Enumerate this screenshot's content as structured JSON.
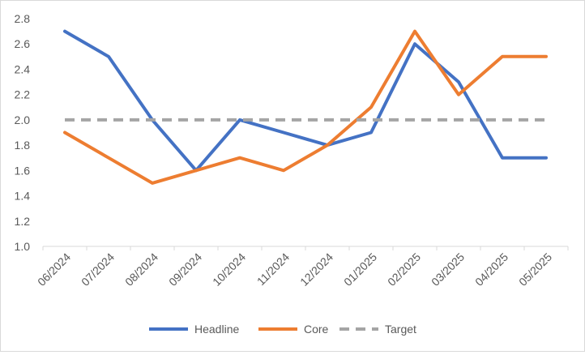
{
  "chart_data": {
    "type": "line",
    "title": "",
    "xlabel": "",
    "ylabel": "",
    "categories": [
      "06/2024",
      "07/2024",
      "08/2024",
      "09/2024",
      "10/2024",
      "11/2024",
      "12/2024",
      "01/2025",
      "02/2025",
      "03/2025",
      "04/2025",
      "05/2025"
    ],
    "ylim": [
      1.0,
      2.8
    ],
    "yticks": [
      "1.0",
      "1.2",
      "1.4",
      "1.6",
      "1.8",
      "2.0",
      "2.2",
      "2.4",
      "2.6",
      "2.8"
    ],
    "grid": false,
    "legend_position": "bottom",
    "series": [
      {
        "name": "Headline",
        "color": "#4472c4",
        "dash": "solid",
        "values": [
          2.7,
          2.5,
          2.0,
          1.6,
          2.0,
          1.9,
          1.8,
          1.9,
          2.6,
          2.3,
          1.7,
          1.7
        ]
      },
      {
        "name": "Core",
        "color": "#ed7d31",
        "dash": "solid",
        "values": [
          1.9,
          1.7,
          1.5,
          1.6,
          1.7,
          1.6,
          1.8,
          2.1,
          2.7,
          2.2,
          2.5,
          2.5
        ]
      },
      {
        "name": "Target",
        "color": "#a5a5a5",
        "dash": "dashed",
        "values": [
          2.0,
          2.0,
          2.0,
          2.0,
          2.0,
          2.0,
          2.0,
          2.0,
          2.0,
          2.0,
          2.0,
          2.0
        ]
      }
    ]
  }
}
